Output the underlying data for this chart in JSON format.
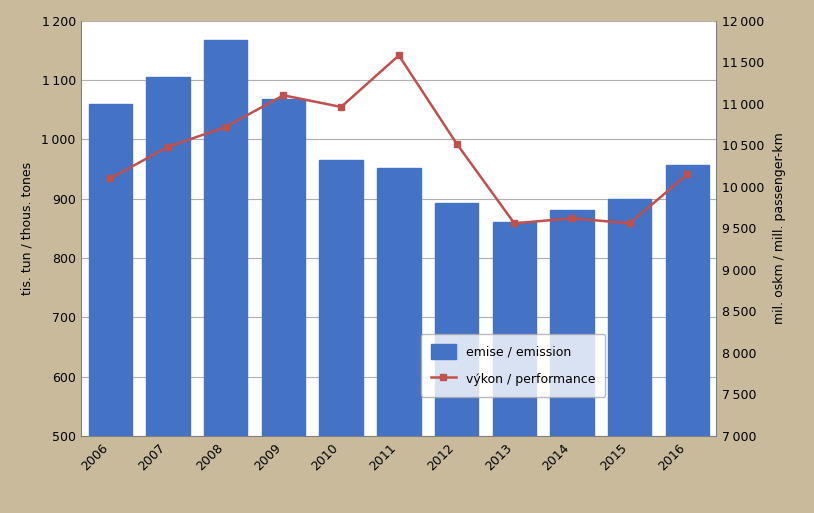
{
  "years": [
    2006,
    2007,
    2008,
    2009,
    2010,
    2011,
    2012,
    2013,
    2014,
    2015,
    2016
  ],
  "emission": [
    1060,
    1105,
    1168,
    1068,
    965,
    952,
    892,
    860,
    880,
    900,
    957
  ],
  "performance": [
    10100,
    10480,
    10720,
    11100,
    10960,
    11580,
    10520,
    9560,
    9620,
    9560,
    10150
  ],
  "bar_color": "#4472C4",
  "line_color": "#C0504D",
  "background_color": "#C8BA9A",
  "plot_bg_color": "#FFFFFF",
  "ylabel_left": "tis. tun / thous. tones",
  "ylabel_right": "mil. oskm / mill. passenger-km",
  "ylim_left": [
    500,
    1200
  ],
  "ylim_right": [
    7000,
    12000
  ],
  "yticks_left": [
    500,
    600,
    700,
    800,
    900,
    1000,
    1100,
    1200
  ],
  "yticks_right": [
    7000,
    7500,
    8000,
    8500,
    9000,
    9500,
    10000,
    10500,
    11000,
    11500,
    12000
  ],
  "legend_emission": "emise / emission",
  "legend_performance": "výkon / performance",
  "grid_color": "#B0B0B0",
  "bar_width": 0.75
}
